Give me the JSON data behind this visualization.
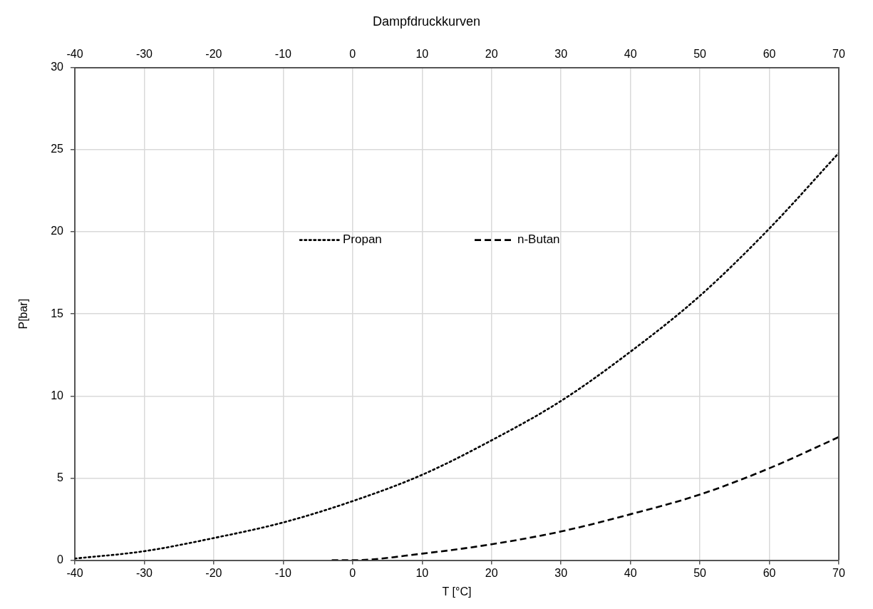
{
  "chart_data": {
    "type": "line",
    "title": "Dampfdruckkurven",
    "xlabel": "T [°C]",
    "ylabel": "P[bar]",
    "xlim": [
      -40,
      70
    ],
    "xticks": [
      -40,
      -30,
      -20,
      -10,
      0,
      10,
      20,
      30,
      40,
      50,
      60,
      70
    ],
    "x2lim": [
      -40,
      70
    ],
    "x2ticks": [
      -40,
      -30,
      -20,
      -10,
      0,
      10,
      20,
      30,
      40,
      50,
      60,
      70
    ],
    "ylim": [
      0,
      30
    ],
    "yticks": [
      0,
      5,
      10,
      15,
      20,
      25,
      30
    ],
    "grid": true,
    "legend": "top",
    "marker": "none",
    "series": [
      {
        "name": "Propan",
        "color": "#000000",
        "line_style": "dotted",
        "x": [
          -40,
          -30,
          -20,
          -10,
          0,
          10,
          20,
          30,
          40,
          50,
          60,
          70
        ],
        "values": [
          0.1,
          0.55,
          1.35,
          2.3,
          3.6,
          5.2,
          7.3,
          9.7,
          12.7,
          16.1,
          20.2,
          24.8
        ]
      },
      {
        "name": "n-Butan",
        "color": "#000000",
        "line_style": "dashed",
        "x": [
          -3,
          0,
          10,
          20,
          30,
          40,
          50,
          60,
          70
        ],
        "values": [
          0,
          0,
          0.4,
          0.97,
          1.75,
          2.8,
          4.0,
          5.6,
          7.5
        ]
      }
    ]
  }
}
